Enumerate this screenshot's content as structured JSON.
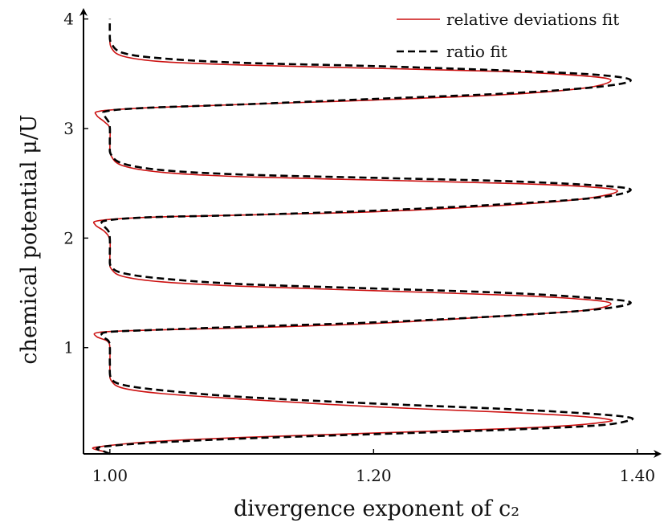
{
  "chart_data": {
    "type": "line",
    "xlabel": "divergence exponent of c₂",
    "ylabel": "chemical potential μ/U",
    "xlim": [
      0.98,
      1.405
    ],
    "ylim": [
      0.03,
      4.1
    ],
    "x_ticks": [
      1.0,
      1.2,
      1.4
    ],
    "x_tick_labels": [
      "1.00",
      "1.20",
      "1.40"
    ],
    "y_ticks": [
      1,
      2,
      3,
      4
    ],
    "y_tick_labels": [
      "1",
      "2",
      "3",
      "4"
    ],
    "grid": false,
    "legend_position": "top-right",
    "legend": [
      "relative deviations fit",
      "ratio fit"
    ],
    "series": [
      {
        "name": "relative deviations fit",
        "color": "#cc1111",
        "style": "solid",
        "points": [
          [
            1.0,
            0.03
          ],
          [
            0.996,
            0.05
          ],
          [
            0.987,
            0.08
          ],
          [
            0.995,
            0.1
          ],
          [
            1.03,
            0.14
          ],
          [
            1.1,
            0.18
          ],
          [
            1.2,
            0.22
          ],
          [
            1.3,
            0.26
          ],
          [
            1.35,
            0.29
          ],
          [
            1.375,
            0.32
          ],
          [
            1.38,
            0.34
          ],
          [
            1.36,
            0.37
          ],
          [
            1.3,
            0.41
          ],
          [
            1.2,
            0.46
          ],
          [
            1.1,
            0.53
          ],
          [
            1.04,
            0.58
          ],
          [
            1.01,
            0.63
          ],
          [
            1.001,
            0.7
          ],
          [
            1.0,
            0.8
          ],
          [
            1.0,
            1.0
          ],
          [
            0.998,
            1.06
          ],
          [
            0.99,
            1.1
          ],
          [
            0.992,
            1.14
          ],
          [
            1.03,
            1.16
          ],
          [
            1.1,
            1.18
          ],
          [
            1.2,
            1.22
          ],
          [
            1.3,
            1.29
          ],
          [
            1.36,
            1.34
          ],
          [
            1.38,
            1.4
          ],
          [
            1.36,
            1.44
          ],
          [
            1.3,
            1.48
          ],
          [
            1.2,
            1.52
          ],
          [
            1.1,
            1.56
          ],
          [
            1.04,
            1.6
          ],
          [
            1.01,
            1.65
          ],
          [
            1.001,
            1.72
          ],
          [
            1.0,
            1.8
          ],
          [
            1.0,
            1.98
          ],
          [
            0.996,
            2.06
          ],
          [
            0.989,
            2.12
          ],
          [
            0.992,
            2.16
          ],
          [
            1.03,
            2.19
          ],
          [
            1.1,
            2.21
          ],
          [
            1.2,
            2.24
          ],
          [
            1.3,
            2.3
          ],
          [
            1.36,
            2.36
          ],
          [
            1.385,
            2.43
          ],
          [
            1.36,
            2.47
          ],
          [
            1.3,
            2.5
          ],
          [
            1.2,
            2.53
          ],
          [
            1.1,
            2.56
          ],
          [
            1.04,
            2.6
          ],
          [
            1.01,
            2.66
          ],
          [
            1.001,
            2.75
          ],
          [
            1.0,
            2.85
          ],
          [
            1.0,
            3.0
          ],
          [
            0.996,
            3.06
          ],
          [
            0.99,
            3.12
          ],
          [
            0.993,
            3.16
          ],
          [
            1.03,
            3.19
          ],
          [
            1.1,
            3.22
          ],
          [
            1.2,
            3.26
          ],
          [
            1.3,
            3.31
          ],
          [
            1.36,
            3.37
          ],
          [
            1.38,
            3.44
          ],
          [
            1.36,
            3.48
          ],
          [
            1.3,
            3.52
          ],
          [
            1.2,
            3.55
          ],
          [
            1.1,
            3.58
          ],
          [
            1.04,
            3.61
          ],
          [
            1.01,
            3.66
          ],
          [
            1.001,
            3.74
          ],
          [
            1.0,
            3.85
          ]
        ]
      },
      {
        "name": "ratio fit",
        "color": "#000000",
        "style": "dashed",
        "points": [
          [
            1.0,
            0.03
          ],
          [
            0.996,
            0.05
          ],
          [
            0.99,
            0.08
          ],
          [
            0.998,
            0.1
          ],
          [
            1.03,
            0.13
          ],
          [
            1.1,
            0.17
          ],
          [
            1.2,
            0.21
          ],
          [
            1.3,
            0.25
          ],
          [
            1.37,
            0.29
          ],
          [
            1.395,
            0.34
          ],
          [
            1.39,
            0.37
          ],
          [
            1.36,
            0.4
          ],
          [
            1.3,
            0.44
          ],
          [
            1.2,
            0.49
          ],
          [
            1.1,
            0.55
          ],
          [
            1.04,
            0.61
          ],
          [
            1.01,
            0.66
          ],
          [
            1.001,
            0.72
          ],
          [
            1.0,
            0.85
          ],
          [
            1.0,
            1.0
          ],
          [
            0.999,
            1.06
          ],
          [
            0.995,
            1.1
          ],
          [
            0.997,
            1.14
          ],
          [
            1.03,
            1.16
          ],
          [
            1.1,
            1.19
          ],
          [
            1.2,
            1.23
          ],
          [
            1.3,
            1.29
          ],
          [
            1.37,
            1.35
          ],
          [
            1.395,
            1.41
          ],
          [
            1.37,
            1.45
          ],
          [
            1.3,
            1.5
          ],
          [
            1.2,
            1.54
          ],
          [
            1.1,
            1.58
          ],
          [
            1.04,
            1.63
          ],
          [
            1.01,
            1.68
          ],
          [
            1.001,
            1.74
          ],
          [
            1.0,
            1.82
          ],
          [
            1.0,
            1.98
          ],
          [
            0.999,
            2.06
          ],
          [
            0.995,
            2.12
          ],
          [
            0.997,
            2.16
          ],
          [
            1.03,
            2.19
          ],
          [
            1.1,
            2.21
          ],
          [
            1.2,
            2.25
          ],
          [
            1.3,
            2.31
          ],
          [
            1.37,
            2.37
          ],
          [
            1.395,
            2.44
          ],
          [
            1.37,
            2.48
          ],
          [
            1.3,
            2.52
          ],
          [
            1.2,
            2.55
          ],
          [
            1.1,
            2.58
          ],
          [
            1.04,
            2.62
          ],
          [
            1.01,
            2.68
          ],
          [
            1.001,
            2.76
          ],
          [
            1.0,
            2.85
          ],
          [
            1.0,
            3.0
          ],
          [
            0.999,
            3.06
          ],
          [
            0.996,
            3.12
          ],
          [
            0.998,
            3.16
          ],
          [
            1.03,
            3.19
          ],
          [
            1.1,
            3.22
          ],
          [
            1.2,
            3.27
          ],
          [
            1.3,
            3.32
          ],
          [
            1.37,
            3.38
          ],
          [
            1.395,
            3.44
          ],
          [
            1.37,
            3.49
          ],
          [
            1.3,
            3.53
          ],
          [
            1.2,
            3.57
          ],
          [
            1.1,
            3.6
          ],
          [
            1.04,
            3.64
          ],
          [
            1.01,
            3.69
          ],
          [
            1.001,
            3.78
          ],
          [
            1.0,
            3.88
          ],
          [
            1.0,
            4.0
          ]
        ]
      }
    ]
  }
}
